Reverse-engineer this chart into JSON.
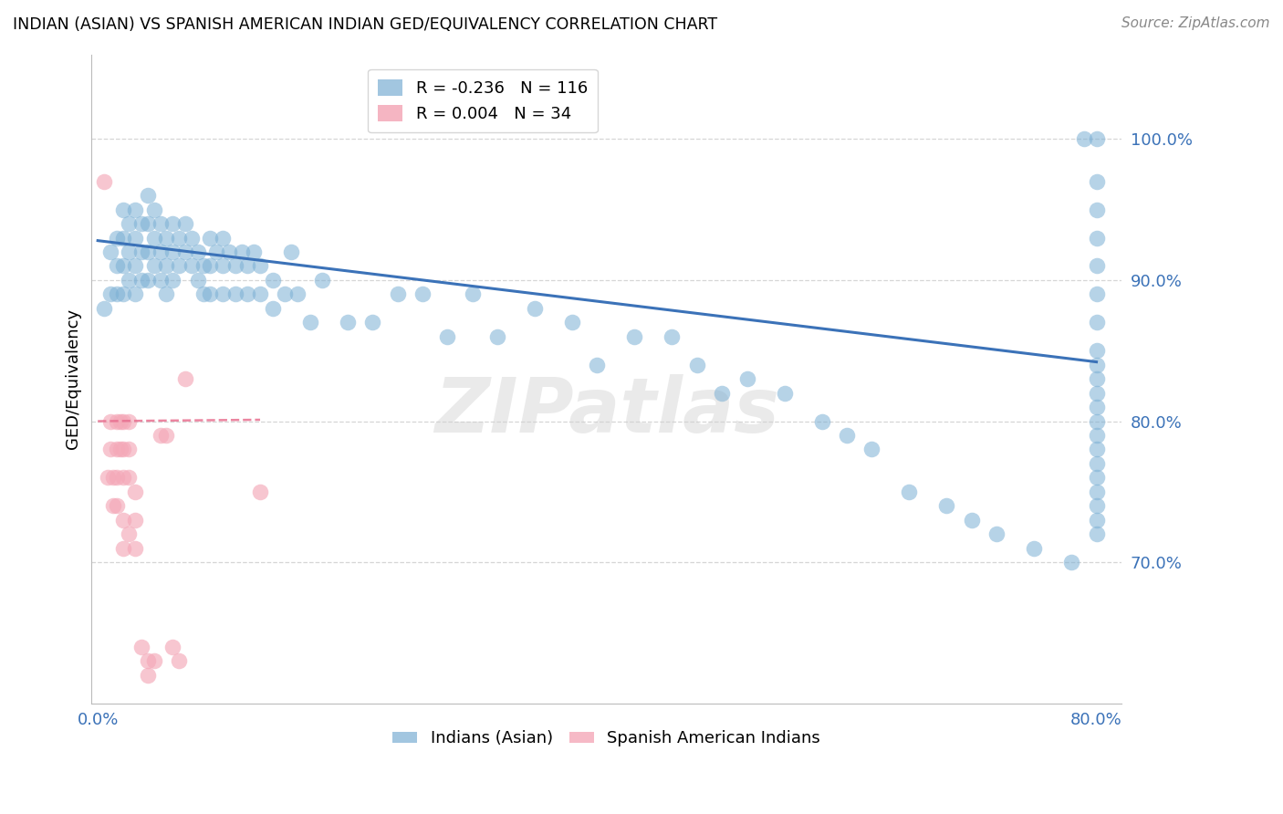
{
  "title": "INDIAN (ASIAN) VS SPANISH AMERICAN INDIAN GED/EQUIVALENCY CORRELATION CHART",
  "source": "Source: ZipAtlas.com",
  "ylabel": "GED/Equivalency",
  "ytick_labels": [
    "70.0%",
    "80.0%",
    "90.0%",
    "100.0%"
  ],
  "ytick_values": [
    0.7,
    0.8,
    0.9,
    1.0
  ],
  "xtick_values": [
    0.0,
    0.1,
    0.2,
    0.3,
    0.4,
    0.5,
    0.6,
    0.7,
    0.8
  ],
  "xtick_labels": [
    "0.0%",
    "",
    "",
    "",
    "",
    "",
    "",
    "",
    "80.0%"
  ],
  "xlim": [
    -0.005,
    0.82
  ],
  "ylim": [
    0.6,
    1.06
  ],
  "blue_color": "#7BAFD4",
  "pink_color": "#F4A8B8",
  "blue_line_color": "#3B72B8",
  "pink_line_color": "#E87090",
  "legend_blue_R": "-0.236",
  "legend_blue_N": "116",
  "legend_pink_R": "0.004",
  "legend_pink_N": "34",
  "blue_scatter_x": [
    0.005,
    0.01,
    0.01,
    0.015,
    0.015,
    0.015,
    0.02,
    0.02,
    0.02,
    0.02,
    0.025,
    0.025,
    0.025,
    0.03,
    0.03,
    0.03,
    0.03,
    0.035,
    0.035,
    0.035,
    0.04,
    0.04,
    0.04,
    0.04,
    0.045,
    0.045,
    0.045,
    0.05,
    0.05,
    0.05,
    0.055,
    0.055,
    0.055,
    0.06,
    0.06,
    0.06,
    0.065,
    0.065,
    0.07,
    0.07,
    0.075,
    0.075,
    0.08,
    0.08,
    0.085,
    0.085,
    0.09,
    0.09,
    0.09,
    0.095,
    0.1,
    0.1,
    0.1,
    0.105,
    0.11,
    0.11,
    0.115,
    0.12,
    0.12,
    0.125,
    0.13,
    0.13,
    0.14,
    0.14,
    0.15,
    0.155,
    0.16,
    0.17,
    0.18,
    0.2,
    0.22,
    0.24,
    0.26,
    0.28,
    0.3,
    0.32,
    0.35,
    0.38,
    0.4,
    0.43,
    0.46,
    0.48,
    0.5,
    0.52,
    0.55,
    0.58,
    0.6,
    0.62,
    0.65,
    0.68,
    0.7,
    0.72,
    0.75,
    0.78,
    0.79,
    0.8,
    0.8,
    0.8,
    0.8,
    0.8,
    0.8,
    0.8,
    0.8,
    0.8,
    0.8,
    0.8,
    0.8,
    0.8,
    0.8,
    0.8,
    0.8,
    0.8,
    0.8,
    0.8,
    0.8,
    0.8
  ],
  "blue_scatter_y": [
    0.88,
    0.92,
    0.89,
    0.93,
    0.91,
    0.89,
    0.95,
    0.93,
    0.91,
    0.89,
    0.94,
    0.92,
    0.9,
    0.95,
    0.93,
    0.91,
    0.89,
    0.94,
    0.92,
    0.9,
    0.96,
    0.94,
    0.92,
    0.9,
    0.95,
    0.93,
    0.91,
    0.94,
    0.92,
    0.9,
    0.93,
    0.91,
    0.89,
    0.94,
    0.92,
    0.9,
    0.93,
    0.91,
    0.94,
    0.92,
    0.93,
    0.91,
    0.92,
    0.9,
    0.91,
    0.89,
    0.93,
    0.91,
    0.89,
    0.92,
    0.93,
    0.91,
    0.89,
    0.92,
    0.91,
    0.89,
    0.92,
    0.91,
    0.89,
    0.92,
    0.91,
    0.89,
    0.9,
    0.88,
    0.89,
    0.92,
    0.89,
    0.87,
    0.9,
    0.87,
    0.87,
    0.89,
    0.89,
    0.86,
    0.89,
    0.86,
    0.88,
    0.87,
    0.84,
    0.86,
    0.86,
    0.84,
    0.82,
    0.83,
    0.82,
    0.8,
    0.79,
    0.78,
    0.75,
    0.74,
    0.73,
    0.72,
    0.71,
    0.7,
    1.0,
    1.0,
    0.97,
    0.95,
    0.93,
    0.91,
    0.89,
    0.87,
    0.85,
    0.84,
    0.83,
    0.82,
    0.81,
    0.8,
    0.79,
    0.78,
    0.77,
    0.76,
    0.75,
    0.74,
    0.73,
    0.72
  ],
  "pink_scatter_x": [
    0.005,
    0.008,
    0.01,
    0.01,
    0.012,
    0.012,
    0.015,
    0.015,
    0.015,
    0.018,
    0.018,
    0.02,
    0.02,
    0.02,
    0.025,
    0.025,
    0.025,
    0.03,
    0.03,
    0.035,
    0.04,
    0.04,
    0.045,
    0.05,
    0.055,
    0.06,
    0.065,
    0.07,
    0.13,
    0.015,
    0.02,
    0.02,
    0.025,
    0.03
  ],
  "pink_scatter_y": [
    0.97,
    0.76,
    0.8,
    0.78,
    0.76,
    0.74,
    0.8,
    0.78,
    0.76,
    0.8,
    0.78,
    0.8,
    0.78,
    0.76,
    0.8,
    0.78,
    0.76,
    0.75,
    0.73,
    0.64,
    0.63,
    0.62,
    0.63,
    0.79,
    0.79,
    0.64,
    0.63,
    0.83,
    0.75,
    0.74,
    0.73,
    0.71,
    0.72,
    0.71
  ],
  "blue_trend_x": [
    0.0,
    0.8
  ],
  "blue_trend_y": [
    0.928,
    0.842
  ],
  "pink_trend_x": [
    0.0,
    0.13
  ],
  "pink_trend_y": [
    0.8,
    0.801
  ],
  "watermark": "ZIPatlas",
  "background_color": "#FFFFFF",
  "grid_color": "#CCCCCC"
}
